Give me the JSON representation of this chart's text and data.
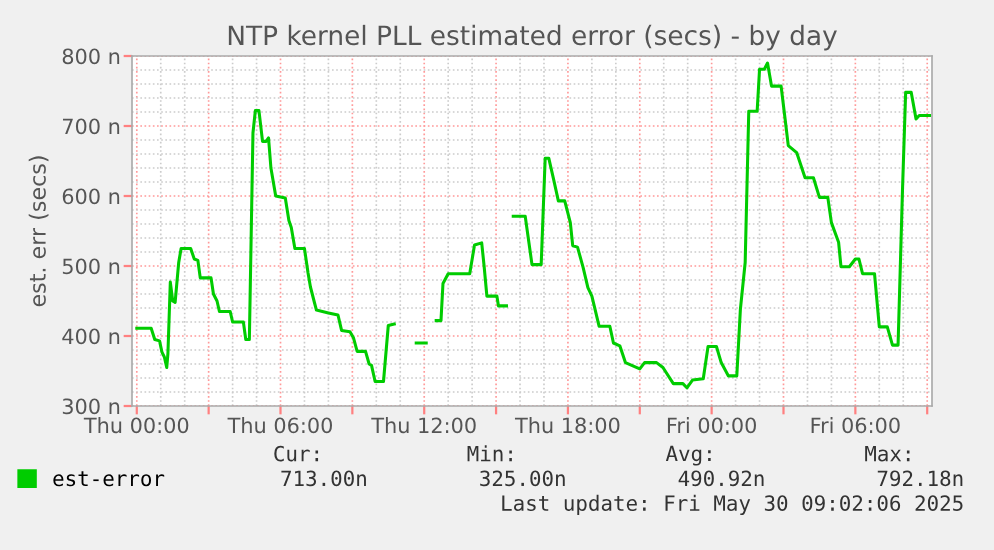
{
  "chart_data": {
    "type": "line",
    "title": "NTP kernel PLL estimated error (secs) - by day",
    "ylabel": "est. err (secs)",
    "x": [
      "2025-05-29T00:00",
      "2025-05-29T00:36",
      "2025-05-29T00:45",
      "2025-05-29T00:57",
      "2025-05-29T01:03",
      "2025-05-29T01:09",
      "2025-05-29T01:15",
      "2025-05-29T01:18",
      "2025-05-29T01:24",
      "2025-05-29T01:30",
      "2025-05-29T01:36",
      "2025-05-29T01:45",
      "2025-05-29T01:51",
      "2025-05-29T02:15",
      "2025-05-29T02:24",
      "2025-05-29T02:33",
      "2025-05-29T02:39",
      "2025-05-29T03:06",
      "2025-05-29T03:12",
      "2025-05-29T03:21",
      "2025-05-29T03:27",
      "2025-05-29T03:54",
      "2025-05-29T04:00",
      "2025-05-29T04:27",
      "2025-05-29T04:33",
      "2025-05-29T04:42",
      "2025-05-29T04:51",
      "2025-05-29T04:57",
      "2025-05-29T05:06",
      "2025-05-29T05:15",
      "2025-05-29T05:24",
      "2025-05-29T05:30",
      "2025-05-29T05:36",
      "2025-05-29T05:48",
      "2025-05-29T06:12",
      "2025-05-29T06:21",
      "2025-05-29T06:27",
      "2025-05-29T06:36",
      "2025-05-29T07:00",
      "2025-05-29T07:09",
      "2025-05-29T07:15",
      "2025-05-29T07:24",
      "2025-05-29T07:30",
      "2025-05-29T08:00",
      "2025-05-29T08:24",
      "2025-05-29T08:33",
      "2025-05-29T08:54",
      "2025-05-29T09:03",
      "2025-05-29T09:12",
      "2025-05-29T09:33",
      "2025-05-29T09:42",
      "2025-05-29T09:48",
      "2025-05-29T09:57",
      "2025-05-29T10:18",
      "2025-05-29T10:30",
      "2025-05-29T10:45",
      "2025-05-29T11:12",
      "2025-05-29T11:40",
      "2025-05-29T12:05",
      "2025-05-29T12:18",
      "2025-05-29T12:30",
      "2025-05-29T12:42",
      "2025-05-29T12:47",
      "2025-05-29T13:00",
      "2025-05-29T13:54",
      "2025-05-29T14:06",
      "2025-05-29T14:24",
      "2025-05-29T14:30",
      "2025-05-29T14:37",
      "2025-05-29T15:02",
      "2025-05-29T15:06",
      "2025-05-29T15:26",
      "2025-05-29T15:36",
      "2025-05-29T15:43",
      "2025-05-29T16:13",
      "2025-05-29T16:30",
      "2025-05-29T16:53",
      "2025-05-29T17:03",
      "2025-05-29T17:12",
      "2025-05-29T17:24",
      "2025-05-29T17:36",
      "2025-05-29T17:52",
      "2025-05-29T18:06",
      "2025-05-29T18:12",
      "2025-05-29T18:24",
      "2025-05-29T18:38",
      "2025-05-29T18:50",
      "2025-05-29T19:00",
      "2025-05-29T19:18",
      "2025-05-29T19:45",
      "2025-05-29T19:54",
      "2025-05-29T20:10",
      "2025-05-29T20:24",
      "2025-05-29T21:00",
      "2025-05-29T21:12",
      "2025-05-29T21:42",
      "2025-05-29T21:58",
      "2025-05-29T22:24",
      "2025-05-29T22:48",
      "2025-05-29T22:58",
      "2025-05-29T23:12",
      "2025-05-29T23:39",
      "2025-05-29T23:51",
      "2025-05-30T00:12",
      "2025-05-30T00:24",
      "2025-05-30T00:42",
      "2025-05-30T01:03",
      "2025-05-30T01:12",
      "2025-05-30T01:24",
      "2025-05-30T01:33",
      "2025-05-30T01:54",
      "2025-05-30T02:00",
      "2025-05-30T02:12",
      "2025-05-30T02:20",
      "2025-05-30T02:30",
      "2025-05-30T02:54",
      "2025-05-30T03:04",
      "2025-05-30T03:12",
      "2025-05-30T03:33",
      "2025-05-30T03:54",
      "2025-05-30T04:15",
      "2025-05-30T04:30",
      "2025-05-30T04:51",
      "2025-05-30T05:00",
      "2025-05-30T05:18",
      "2025-05-30T05:24",
      "2025-05-30T05:45",
      "2025-05-30T06:00",
      "2025-05-30T06:09",
      "2025-05-30T06:18",
      "2025-05-30T06:48",
      "2025-05-30T07:00",
      "2025-05-30T07:20",
      "2025-05-30T07:33",
      "2025-05-30T07:47",
      "2025-05-30T07:58",
      "2025-05-30T08:06",
      "2025-05-30T08:20",
      "2025-05-30T08:32",
      "2025-05-30T08:40",
      "2025-05-30T09:06"
    ],
    "series": [
      {
        "name": "est-error",
        "color": "#00cc00",
        "values": [
          411,
          411,
          395,
          393,
          377,
          370,
          355,
          375,
          477,
          450,
          448,
          505,
          525,
          525,
          510,
          508,
          483,
          483,
          460,
          450,
          435,
          435,
          420,
          420,
          395,
          395,
          690,
          722,
          722,
          678,
          678,
          683,
          640,
          600,
          597,
          565,
          555,
          525,
          525,
          490,
          470,
          450,
          437,
          433,
          430,
          408,
          406,
          397,
          378,
          378,
          360,
          358,
          335,
          335,
          415,
          417,
          null,
          390,
          390,
          null,
          422,
          422,
          475,
          489,
          489,
          530,
          533,
          500,
          457,
          457,
          443,
          443,
          null,
          571,
          571,
          502,
          502,
          654,
          654,
          624,
          593,
          593,
          562,
          529,
          527,
          498,
          469,
          457,
          414,
          414,
          390,
          386,
          362,
          353,
          362,
          362,
          355,
          332,
          332,
          326,
          337,
          339,
          385,
          385,
          362,
          343,
          343,
          438,
          505,
          721,
          721,
          781,
          781,
          790,
          757,
          757,
          710,
          672,
          662,
          626,
          626,
          598,
          598,
          562,
          534,
          499,
          499,
          510,
          510,
          489,
          489,
          413,
          413,
          387,
          387,
          607,
          748,
          748,
          710,
          715,
          715
        ]
      }
    ],
    "xlim": [
      "2025-05-28T23:48",
      "2025-05-30T09:12"
    ],
    "xticks": [
      {
        "value": "2025-05-29T00:00",
        "label": "Thu 00:00"
      },
      {
        "value": "2025-05-29T03:00",
        "label": null
      },
      {
        "value": "2025-05-29T06:00",
        "label": "Thu 06:00"
      },
      {
        "value": "2025-05-29T09:00",
        "label": null
      },
      {
        "value": "2025-05-29T12:00",
        "label": "Thu 12:00"
      },
      {
        "value": "2025-05-29T15:00",
        "label": null
      },
      {
        "value": "2025-05-29T18:00",
        "label": "Thu 18:00"
      },
      {
        "value": "2025-05-29T21:00",
        "label": null
      },
      {
        "value": "2025-05-30T00:00",
        "label": "Fri 00:00"
      },
      {
        "value": "2025-05-30T03:00",
        "label": null
      },
      {
        "value": "2025-05-30T06:00",
        "label": "Fri 06:00"
      },
      {
        "value": "2025-05-30T09:00",
        "label": null
      }
    ],
    "ylim": [
      300,
      800
    ],
    "yticks": [
      {
        "value": 300,
        "label": "300 n"
      },
      {
        "value": 400,
        "label": "400 n"
      },
      {
        "value": 500,
        "label": "500 n"
      },
      {
        "value": 600,
        "label": "600 n"
      },
      {
        "value": 700,
        "label": "700 n"
      },
      {
        "value": 800,
        "label": "800 n"
      }
    ],
    "grid": true,
    "legend": "bottom left",
    "annotations": [
      "Cur:",
      "Min:",
      "Avg:",
      "Max:",
      "713.00n",
      "325.00n",
      "490.92n",
      "792.18n",
      "Last update: Fri May 30 09:02:06 2025"
    ]
  }
}
